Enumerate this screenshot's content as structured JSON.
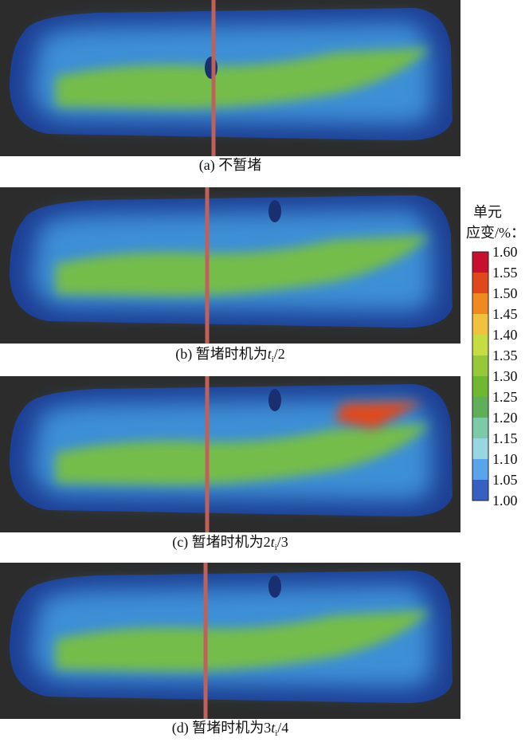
{
  "panels": [
    {
      "prefix": "(a) 不暂堵"
    },
    {
      "prefix": "(b) 暂堵时机为",
      "var": "t",
      "sub": "i",
      "suffix": "/2"
    },
    {
      "prefix": "(c) 暂堵时机为2",
      "var": "t",
      "sub": "i",
      "suffix": "/3"
    },
    {
      "prefix": "(d) 暂堵时机为3",
      "var": "t",
      "sub": "i",
      "suffix": "/4"
    }
  ],
  "colorbar": {
    "title_line1": "单元",
    "title_line2": "应变/%：",
    "labels": [
      "1.60",
      "1.55",
      "1.50",
      "1.45",
      "1.40",
      "1.35",
      "1.30",
      "1.25",
      "1.20",
      "1.15",
      "1.10",
      "1.05",
      "1.00"
    ],
    "colors": [
      "#c8102e",
      "#e0471c",
      "#ef8a22",
      "#f2c23e",
      "#c7dc42",
      "#96c83a",
      "#6fb830",
      "#5fae58",
      "#7ccaa8",
      "#98d6e2",
      "#5aa4ec",
      "#3660c2"
    ]
  }
}
